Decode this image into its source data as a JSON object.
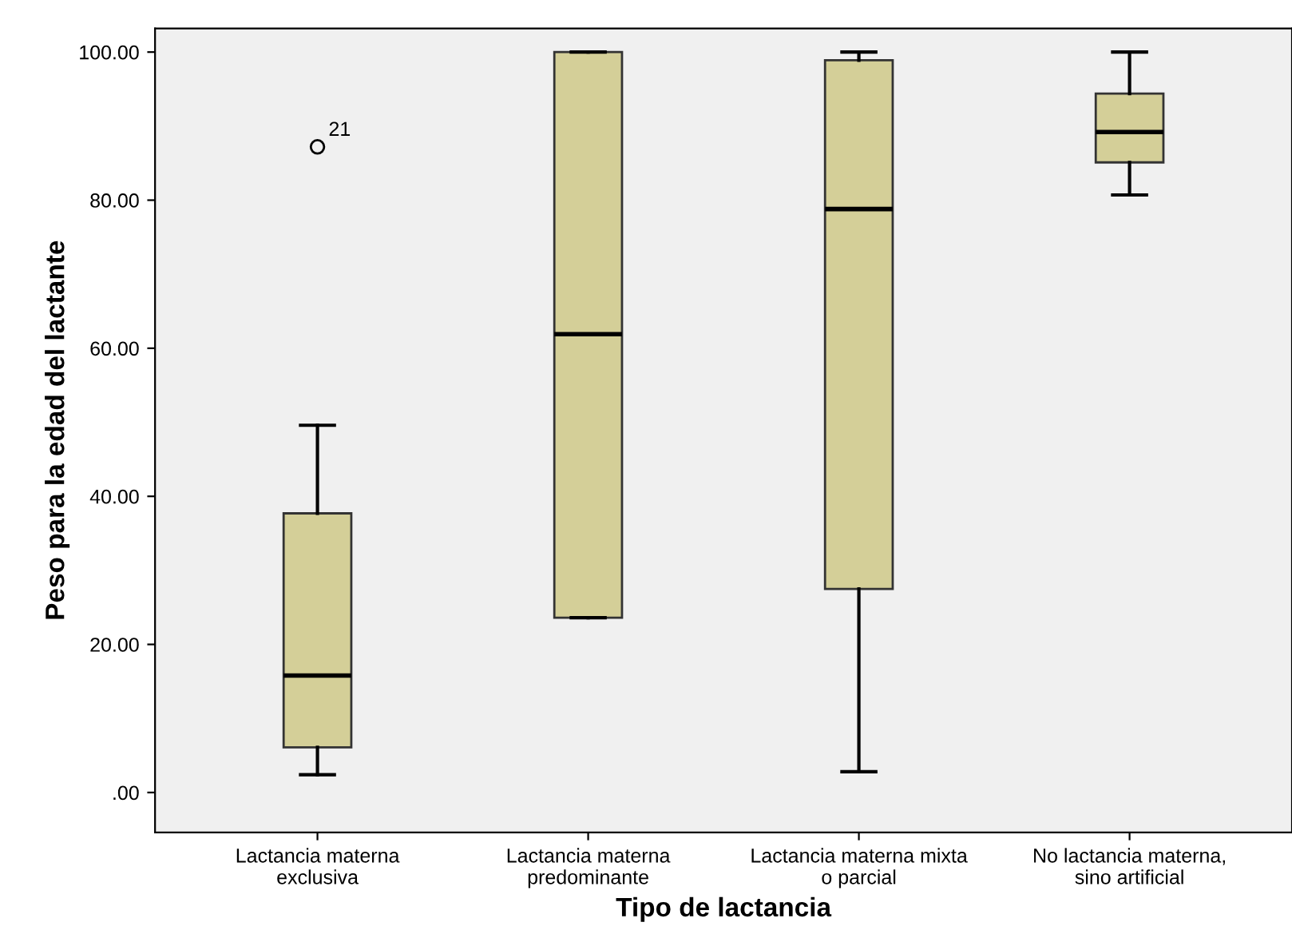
{
  "chart_data": {
    "type": "box",
    "xlabel": "Tipo de lactancia",
    "ylabel": "Peso para la edad del lactante",
    "categories": [
      "Lactancia materna\nexclusiva",
      "Lactancia materna\npredominante",
      "Lactancia materna mixta\no parcial",
      "No lactancia materna,\nsino artificial"
    ],
    "color": "#d4cf98",
    "boxes": [
      {
        "low": 2.4,
        "q1": 6.1,
        "median": 15.8,
        "q3": 37.7,
        "high": 49.6,
        "outliers": [
          87.2
        ]
      },
      {
        "low": 23.6,
        "q1": 23.6,
        "median": 61.9,
        "q3": 100,
        "high": 100
      },
      {
        "low": 2.8,
        "q1": 27.5,
        "median": 78.8,
        "q3": 98.9,
        "high": 100
      },
      {
        "low": 80.7,
        "q1": 85.1,
        "median": 89.2,
        "q3": 94.4,
        "high": 100
      }
    ],
    "annotations": [
      "21"
    ],
    "ylim": [
      -5.4,
      103.2
    ],
    "yticks": [
      {
        "value": 0,
        "label": ".00"
      },
      {
        "value": 20,
        "label": "20.00"
      },
      {
        "value": 40,
        "label": "40.00"
      },
      {
        "value": 60,
        "label": "60.00"
      },
      {
        "value": 80,
        "label": "80.00"
      },
      {
        "value": 100,
        "label": "100.00"
      }
    ],
    "grid": false,
    "legend": false
  }
}
